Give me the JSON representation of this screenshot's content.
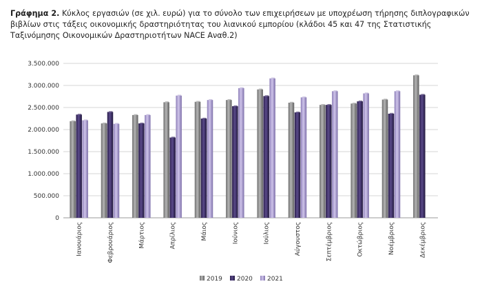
{
  "caption": {
    "label": "Γράφημα 2.",
    "text": "Κύκλος εργασιών (σε χιλ. ευρώ) για το σύνολο των επιχειρήσεων με υποχρέωση τήρησης διπλογραφικών βιβλίων στις τάξεις οικονομικής δραστηριότητας του λιανικού εμπορίου (κλάδοι 45 και 47 της Στατιστικής Ταξινόμησης Οικονομικών Δραστηριοτήτων NACE Αναθ.2)"
  },
  "chart_data": {
    "type": "bar",
    "title": "",
    "xlabel": "",
    "ylabel": "",
    "ylim": [
      0,
      3500000
    ],
    "yticks": [
      "0",
      "500.000",
      "1.000.000",
      "1.500.000",
      "2.000.000",
      "2.500.000",
      "3.000.000",
      "3.500.000"
    ],
    "grid": true,
    "legend_position": "bottom",
    "categories": [
      "Ιανουάριος",
      "Φεβρουάριος",
      "Μάρτιος",
      "Απρίλιος",
      "Μάιος",
      "Ιούνιος",
      "Ιούλιος",
      "Αύγουστος",
      "Σεπτέμβριος",
      "Οκτώβριος",
      "Νοέμβριος",
      "Δεκέμβριος"
    ],
    "series": [
      {
        "name": "2019",
        "color": "#8c8c8c",
        "values": [
          2190000,
          2140000,
          2330000,
          2620000,
          2630000,
          2670000,
          2910000,
          2610000,
          2560000,
          2590000,
          2680000,
          3230000
        ]
      },
      {
        "name": "2020",
        "color": "#3b2a63",
        "values": [
          2340000,
          2400000,
          2140000,
          1820000,
          2250000,
          2530000,
          2760000,
          2390000,
          2560000,
          2640000,
          2360000,
          2790000
        ]
      },
      {
        "name": "2021",
        "color": "#a99bcc",
        "values": [
          2210000,
          2130000,
          2330000,
          2770000,
          2670000,
          2940000,
          3160000,
          2730000,
          2870000,
          2820000,
          2870000,
          null
        ]
      }
    ]
  }
}
